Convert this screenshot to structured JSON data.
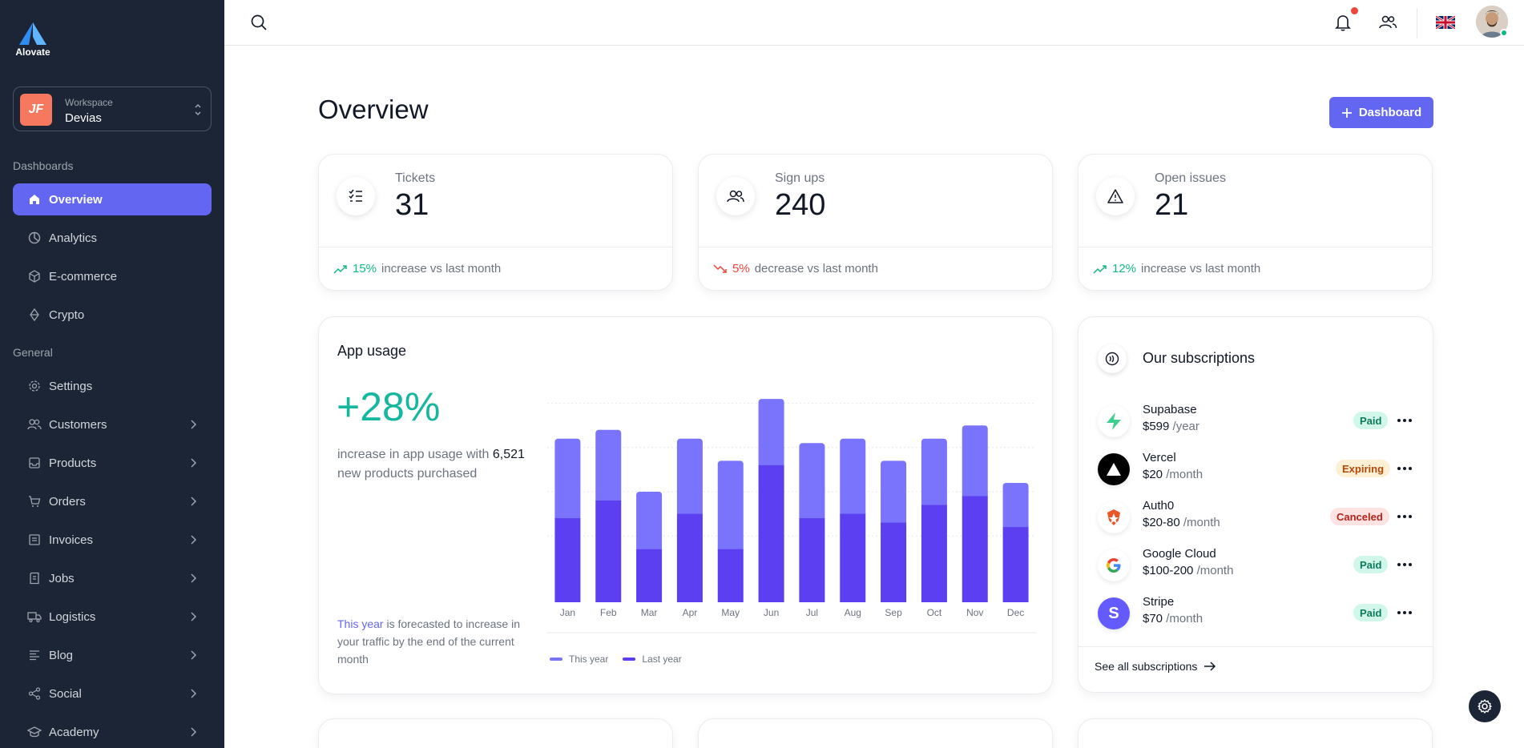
{
  "brand": {
    "name": "Alovate"
  },
  "workspace": {
    "label": "Workspace",
    "name": "Devias",
    "initials": "JF"
  },
  "sidebar": {
    "sections": [
      {
        "title": "Dashboards"
      },
      {
        "title": "General"
      }
    ],
    "items": [
      {
        "label": "Overview",
        "icon": "home-icon",
        "active": true
      },
      {
        "label": "Analytics",
        "icon": "chart-pie-icon"
      },
      {
        "label": "E-commerce",
        "icon": "cube-icon"
      },
      {
        "label": "Crypto",
        "icon": "diamond-icon"
      },
      {
        "label": "Settings",
        "icon": "gear-icon"
      },
      {
        "label": "Customers",
        "icon": "users-icon"
      },
      {
        "label": "Products",
        "icon": "inbox-icon"
      },
      {
        "label": "Orders",
        "icon": "cart-icon"
      },
      {
        "label": "Invoices",
        "icon": "receipt-icon"
      },
      {
        "label": "Jobs",
        "icon": "clipboard-icon"
      },
      {
        "label": "Logistics",
        "icon": "truck-icon"
      },
      {
        "label": "Blog",
        "icon": "lines-icon"
      },
      {
        "label": "Social",
        "icon": "share-icon"
      },
      {
        "label": "Academy",
        "icon": "graduation-cap-icon"
      }
    ]
  },
  "header": {
    "title": "Overview",
    "button_label": "Dashboard"
  },
  "stats": [
    {
      "label": "Tickets",
      "value": "31",
      "pct": "15%",
      "trend_text": "increase vs last month",
      "trend": "up",
      "icon": "checklist-icon"
    },
    {
      "label": "Sign ups",
      "value": "240",
      "pct": "5%",
      "trend_text": "decrease vs last month",
      "trend": "down",
      "icon": "users-icon"
    },
    {
      "label": "Open issues",
      "value": "21",
      "pct": "12%",
      "trend_text": "increase vs last month",
      "trend": "up",
      "icon": "warning-icon"
    }
  ],
  "app_usage": {
    "title": "App usage",
    "big_pct": "+28%",
    "desc_prefix": "increase in app usage with",
    "desc_number": "6,521",
    "desc_suffix": "new products purchased",
    "forecast_highlight": "This year",
    "forecast_rest": "is forecasted to increase in your traffic by the end of the current month",
    "legend": [
      "This year",
      "Last year"
    ]
  },
  "chart_data": {
    "type": "bar",
    "categories": [
      "Jan",
      "Feb",
      "Mar",
      "Apr",
      "May",
      "Jun",
      "Jul",
      "Aug",
      "Sep",
      "Oct",
      "Nov",
      "Dec"
    ],
    "series": [
      {
        "name": "This year",
        "values": [
          18,
          16,
          13,
          17,
          20,
          15,
          17,
          17,
          14,
          15,
          16,
          10
        ]
      },
      {
        "name": "Last year",
        "values": [
          19,
          23,
          12,
          20,
          12,
          31,
          19,
          20,
          18,
          22,
          24,
          17
        ]
      }
    ],
    "stacked": true,
    "ylim": [
      0,
      50
    ],
    "grid": true,
    "legend_position": "bottom-left",
    "colors": {
      "This year": "#7a73fb",
      "Last year": "#5b3ff0"
    }
  },
  "subscriptions": {
    "title": "Our subscriptions",
    "items": [
      {
        "name": "Supabase",
        "price": "$599",
        "period": "/year",
        "status": "Paid",
        "status_type": "paid",
        "logo": "supabase-icon"
      },
      {
        "name": "Vercel",
        "price": "$20",
        "period": "/month",
        "status": "Expiring",
        "status_type": "expiring",
        "logo": "vercel-icon"
      },
      {
        "name": "Auth0",
        "price": "$20-80",
        "period": "/month",
        "status": "Canceled",
        "status_type": "canceled",
        "logo": "auth0-icon"
      },
      {
        "name": "Google Cloud",
        "price": "$100-200",
        "period": "/month",
        "status": "Paid",
        "status_type": "paid",
        "logo": "google-icon"
      },
      {
        "name": "Stripe",
        "price": "$70",
        "period": "/month",
        "status": "Paid",
        "status_type": "paid",
        "logo": "stripe-icon"
      }
    ],
    "see_all": "See all subscriptions"
  },
  "colors": {
    "accent": "#6366f1",
    "sidebar_bg": "#1c2536",
    "success": "#10b981",
    "error": "#f04438"
  }
}
